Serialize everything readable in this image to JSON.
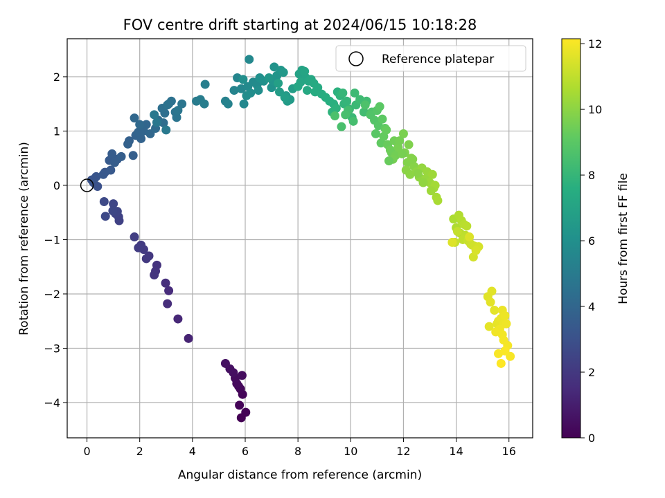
{
  "chart_data": {
    "type": "scatter",
    "title": "FOV centre drift starting at 2024/06/15 10:18:28",
    "xlabel": "Angular distance from reference (arcmin)",
    "ylabel": "Rotation from reference (arcmin)",
    "xlim": [
      -0.75,
      16.9
    ],
    "ylim": [
      -4.65,
      2.7
    ],
    "xticks": [
      0,
      2,
      4,
      6,
      8,
      10,
      12,
      14,
      16
    ],
    "yticks": [
      -4,
      -3,
      -2,
      -1,
      0,
      1,
      2
    ],
    "grid": true,
    "legend": {
      "position": "top-right",
      "entries": [
        "Reference platepar"
      ]
    },
    "reference_point": {
      "name": "Reference platepar",
      "x": 0,
      "y": 0
    },
    "colorbar": {
      "label": "Hours from first FF file",
      "colormap": "viridis",
      "range": [
        0,
        12.15
      ],
      "ticks": [
        0,
        2,
        4,
        6,
        8,
        10,
        12
      ]
    },
    "series": [
      {
        "x": [
          5.85,
          6.02,
          5.78,
          5.9,
          5.82,
          5.75,
          5.68,
          5.62,
          5.88,
          5.55,
          5.42,
          5.25,
          3.85,
          3.45,
          3.1,
          3.05,
          2.98,
          2.65,
          2.6,
          2.55,
          2.35,
          2.25,
          2.15,
          2.05,
          1.95,
          1.8,
          1.22,
          1.2,
          1.08,
          1.15,
          1.0,
          0.98,
          0.7,
          0.65,
          0.4,
          0.25,
          0.18,
          0.28,
          0.35,
          0.68,
          0.62,
          0.9,
          0.85,
          1.15,
          0.95,
          1.05,
          1.3,
          1.75,
          1.6,
          1.55,
          1.85,
          2.05,
          1.95,
          2.15,
          2.25,
          2.4,
          1.8,
          2.0,
          2.6,
          2.7,
          2.9,
          2.95,
          2.85,
          3.1,
          3.2,
          3.05,
          3.35,
          3.4,
          3.6,
          3.45,
          2.65,
          2.55,
          3.0,
          4.15,
          4.3,
          4.45,
          4.48,
          5.25,
          5.35,
          5.58,
          5.7,
          5.85,
          5.95,
          6.15,
          6.1,
          6.3,
          6.45,
          6.05,
          6.2,
          6.5,
          5.92,
          6.55,
          6.7,
          7.0,
          7.1,
          7.05,
          7.2,
          7.35,
          6.9,
          7.45,
          7.55,
          7.7,
          7.6,
          7.3,
          7.8,
          7.5,
          7.25,
          8.05,
          8.15,
          8.3,
          8.25,
          8.1,
          8.0,
          8.4,
          8.5,
          8.35,
          8.6,
          8.75,
          8.65,
          8.9,
          9.05,
          9.2,
          9.35,
          9.5,
          9.45,
          9.3,
          9.6,
          9.75,
          9.85,
          9.7,
          9.95,
          10.05,
          10.2,
          10.15,
          10.35,
          10.6,
          10.5,
          9.9,
          10.1,
          9.8,
          9.65,
          9.4,
          10.55,
          10.8,
          10.75,
          10.9,
          11.0,
          11.05,
          10.95,
          11.1,
          11.2,
          11.3,
          11.15,
          11.25,
          11.35,
          11.4,
          11.55,
          11.5,
          11.65,
          11.7,
          11.6,
          11.8,
          12.0,
          12.05,
          12.2,
          12.15,
          12.3,
          12.4,
          12.1,
          12.25,
          12.5,
          12.6,
          12.7,
          12.85,
          12.9,
          13.0,
          13.1,
          13.15,
          13.2,
          13.25,
          13.3,
          11.45,
          11.85,
          11.95,
          12.35,
          12.55,
          12.75,
          13.05,
          13.9,
          14.0,
          14.1,
          14.2,
          14.15,
          14.3,
          14.4,
          14.35,
          14.25,
          14.05,
          13.95,
          14.45,
          14.55,
          14.6,
          14.7,
          14.65,
          14.85,
          14.75,
          14.5,
          13.85,
          15.2,
          15.35,
          15.3,
          15.45,
          15.25,
          15.55,
          15.6,
          15.7,
          15.75,
          15.8,
          15.85,
          15.9,
          15.65,
          15.5,
          15.75,
          15.8,
          15.95,
          16.05,
          15.6,
          15.85,
          15.7
        ],
        "y": [
          -4.28,
          -4.18,
          -4.05,
          -3.85,
          -3.75,
          -3.7,
          -3.65,
          -3.55,
          -3.5,
          -3.45,
          -3.38,
          -3.28,
          -2.82,
          -2.46,
          -1.94,
          -2.18,
          -1.8,
          -1.47,
          -1.58,
          -1.65,
          -1.3,
          -1.35,
          -1.18,
          -1.1,
          -1.15,
          -0.95,
          -0.65,
          -0.58,
          -0.52,
          -0.48,
          -0.34,
          -0.47,
          -0.57,
          -0.3,
          -0.02,
          0.05,
          0.1,
          0.12,
          0.16,
          0.24,
          0.2,
          0.28,
          0.46,
          0.48,
          0.58,
          0.42,
          0.53,
          0.55,
          0.82,
          0.76,
          0.92,
          0.86,
          0.98,
          1.0,
          1.12,
          0.95,
          1.24,
          1.12,
          1.05,
          1.2,
          1.15,
          1.33,
          1.42,
          1.5,
          1.55,
          1.48,
          1.35,
          1.25,
          1.5,
          1.38,
          1.16,
          1.3,
          1.02,
          1.55,
          1.58,
          1.5,
          1.86,
          1.55,
          1.5,
          1.75,
          1.98,
          1.78,
          1.5,
          2.32,
          1.82,
          1.9,
          1.85,
          1.65,
          1.7,
          1.75,
          1.95,
          1.98,
          1.92,
          1.8,
          2.18,
          1.92,
          2.02,
          2.12,
          1.98,
          2.08,
          1.65,
          1.58,
          1.55,
          1.72,
          1.78,
          1.62,
          1.88,
          2.05,
          2.12,
          1.98,
          2.1,
          1.9,
          1.82,
          1.92,
          1.95,
          1.75,
          1.88,
          1.8,
          1.72,
          1.68,
          1.62,
          1.55,
          1.5,
          1.72,
          1.42,
          1.35,
          1.65,
          1.5,
          1.55,
          1.7,
          1.4,
          1.25,
          1.48,
          1.7,
          1.58,
          1.55,
          1.35,
          1.38,
          1.18,
          1.3,
          1.08,
          1.28,
          1.48,
          1.35,
          1.3,
          1.2,
          1.38,
          1.1,
          0.95,
          1.45,
          1.22,
          1.05,
          0.78,
          0.9,
          1.02,
          0.75,
          0.6,
          0.65,
          0.82,
          0.55,
          0.48,
          0.7,
          0.95,
          0.6,
          0.75,
          0.42,
          0.5,
          0.35,
          0.28,
          0.2,
          0.25,
          0.15,
          0.32,
          0.12,
          0.25,
          0.05,
          0.2,
          -0.05,
          0.0,
          -0.22,
          -0.28,
          0.45,
          0.82,
          0.58,
          0.48,
          0.22,
          0.05,
          -0.1,
          -0.62,
          -0.78,
          -0.55,
          -0.65,
          -0.88,
          -0.72,
          -0.75,
          -0.92,
          -1.0,
          -0.85,
          -1.05,
          -1.02,
          -1.08,
          -1.1,
          -1.12,
          -1.32,
          -1.13,
          -1.2,
          -0.95,
          -1.05,
          -2.05,
          -1.95,
          -2.15,
          -2.3,
          -2.6,
          -2.55,
          -2.5,
          -2.45,
          -2.3,
          -2.55,
          -2.4,
          -2.55,
          -2.65,
          -2.7,
          -2.75,
          -2.85,
          -2.95,
          -3.15,
          -3.1,
          -3.05,
          -3.28
        ],
        "t": [
          0.0,
          0.05,
          0.1,
          0.15,
          0.2,
          0.25,
          0.3,
          0.35,
          0.4,
          0.45,
          0.5,
          0.55,
          1.2,
          1.35,
          1.5,
          1.55,
          1.6,
          1.75,
          1.8,
          1.85,
          1.95,
          2.0,
          2.05,
          2.1,
          2.15,
          2.2,
          2.35,
          2.4,
          2.45,
          2.5,
          2.55,
          2.6,
          2.65,
          2.7,
          3.0,
          3.05,
          3.1,
          3.15,
          3.2,
          3.25,
          3.3,
          3.35,
          3.4,
          3.45,
          3.5,
          3.55,
          3.6,
          3.65,
          3.7,
          3.75,
          3.8,
          3.85,
          3.9,
          3.95,
          4.0,
          4.05,
          4.1,
          4.15,
          4.2,
          4.25,
          4.3,
          4.35,
          4.4,
          4.45,
          4.5,
          4.55,
          4.6,
          4.65,
          4.7,
          4.75,
          4.8,
          4.85,
          4.9,
          5.0,
          5.05,
          5.1,
          5.15,
          5.3,
          5.35,
          5.45,
          5.5,
          5.55,
          5.6,
          5.65,
          5.7,
          5.75,
          5.8,
          5.85,
          5.9,
          5.95,
          6.0,
          6.05,
          6.1,
          6.15,
          6.2,
          6.25,
          6.3,
          6.35,
          6.4,
          6.45,
          6.5,
          6.55,
          6.6,
          6.65,
          6.7,
          6.75,
          6.8,
          6.9,
          6.95,
          7.0,
          7.05,
          7.1,
          7.15,
          7.2,
          7.25,
          7.3,
          7.35,
          7.4,
          7.45,
          7.5,
          7.55,
          7.6,
          7.65,
          7.7,
          7.75,
          7.8,
          7.85,
          7.9,
          7.95,
          8.0,
          8.05,
          8.1,
          8.15,
          8.2,
          8.25,
          8.3,
          8.35,
          8.4,
          8.45,
          8.5,
          8.55,
          8.6,
          8.65,
          8.7,
          8.75,
          8.8,
          8.85,
          8.9,
          8.95,
          9.0,
          9.05,
          9.1,
          9.15,
          9.2,
          9.25,
          9.3,
          9.35,
          9.4,
          9.45,
          9.5,
          9.55,
          9.6,
          9.65,
          9.7,
          9.75,
          9.8,
          9.85,
          9.9,
          9.95,
          10.0,
          10.05,
          10.1,
          10.15,
          10.2,
          10.25,
          10.3,
          10.35,
          10.4,
          10.45,
          10.5,
          10.55,
          9.3,
          9.55,
          9.6,
          9.85,
          9.95,
          10.1,
          10.35,
          10.6,
          10.65,
          10.7,
          10.75,
          10.8,
          10.85,
          10.9,
          10.95,
          11.0,
          11.05,
          11.1,
          11.15,
          11.2,
          11.25,
          11.3,
          11.35,
          11.4,
          11.45,
          11.5,
          11.55,
          11.6,
          11.62,
          11.65,
          11.68,
          11.7,
          11.72,
          11.75,
          11.78,
          11.8,
          11.82,
          11.85,
          11.88,
          11.9,
          11.92,
          11.95,
          11.98,
          12.0,
          12.03,
          12.06,
          12.1,
          12.15
        ]
      }
    ]
  }
}
